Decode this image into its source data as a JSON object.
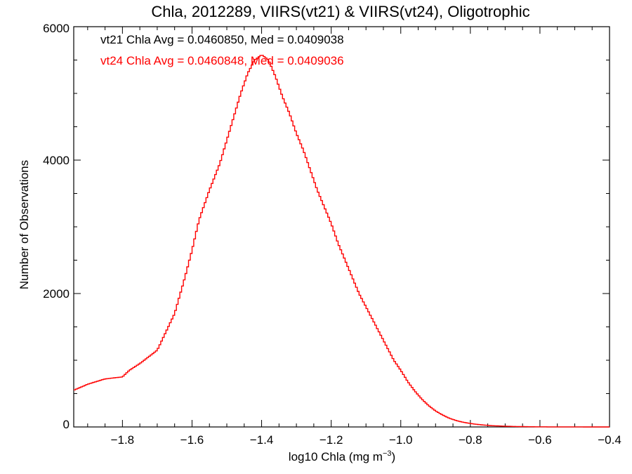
{
  "chart_data": {
    "type": "line",
    "title": "Chla, 2012289, VIIRS(vt21) & VIIRS(vt24), Oligotrophic",
    "xlabel_main": "log10 Chla (mg m",
    "xlabel_sup": "−3",
    "xlabel_close": ")",
    "ylabel": "Number of Observations",
    "xlim": [
      -1.94,
      -0.4
    ],
    "ylim": [
      0,
      6000
    ],
    "x_ticks": [
      -1.8,
      -1.6,
      -1.4,
      -1.2,
      -1.0,
      -0.8,
      -0.6,
      -0.4
    ],
    "x_tick_labels": [
      "−1.8",
      "−1.6",
      "−1.4",
      "−1.2",
      "−1.0",
      "−0.8",
      "−0.6",
      "−0.4"
    ],
    "y_ticks": [
      0,
      2000,
      4000,
      6000
    ],
    "y_tick_labels": [
      "0",
      "2000",
      "4000",
      "6000"
    ],
    "annotations": [
      {
        "text": "vt21 Chla Avg = 0.0460850, Med = 0.0409038",
        "color": "#000000"
      },
      {
        "text": "vt24 Chla Avg = 0.0460848, Med = 0.0409036",
        "color": "#ff0000"
      }
    ],
    "series": [
      {
        "color": "#000000",
        "x": [
          -1.94,
          -1.9,
          -1.85,
          -1.8,
          -1.78,
          -1.75,
          -1.7,
          -1.65,
          -1.62,
          -1.6,
          -1.58,
          -1.55,
          -1.52,
          -1.5,
          -1.48,
          -1.46,
          -1.44,
          -1.42,
          -1.4,
          -1.38,
          -1.36,
          -1.34,
          -1.32,
          -1.3,
          -1.28,
          -1.26,
          -1.24,
          -1.22,
          -1.2,
          -1.18,
          -1.16,
          -1.14,
          -1.12,
          -1.1,
          -1.08,
          -1.06,
          -1.04,
          -1.02,
          -1.0,
          -0.98,
          -0.96,
          -0.94,
          -0.92,
          -0.9,
          -0.88,
          -0.86,
          -0.84,
          -0.82,
          -0.8,
          -0.78,
          -0.76,
          -0.74,
          -0.72,
          -0.7,
          -0.68,
          -0.66,
          -0.64,
          -0.62,
          -0.6,
          -0.55,
          -0.5,
          -0.45,
          -0.4
        ],
        "y": [
          550,
          640,
          720,
          750,
          850,
          950,
          1150,
          1700,
          2250,
          2650,
          3100,
          3550,
          3950,
          4300,
          4650,
          5000,
          5300,
          5500,
          5580,
          5500,
          5250,
          4950,
          4700,
          4400,
          4150,
          3850,
          3550,
          3300,
          3050,
          2750,
          2500,
          2250,
          2000,
          1800,
          1600,
          1400,
          1200,
          1000,
          850,
          680,
          540,
          420,
          320,
          240,
          180,
          130,
          95,
          70,
          52,
          38,
          28,
          20,
          15,
          11,
          8,
          6,
          4,
          3,
          2,
          1,
          1,
          0,
          0
        ]
      }
    ]
  }
}
